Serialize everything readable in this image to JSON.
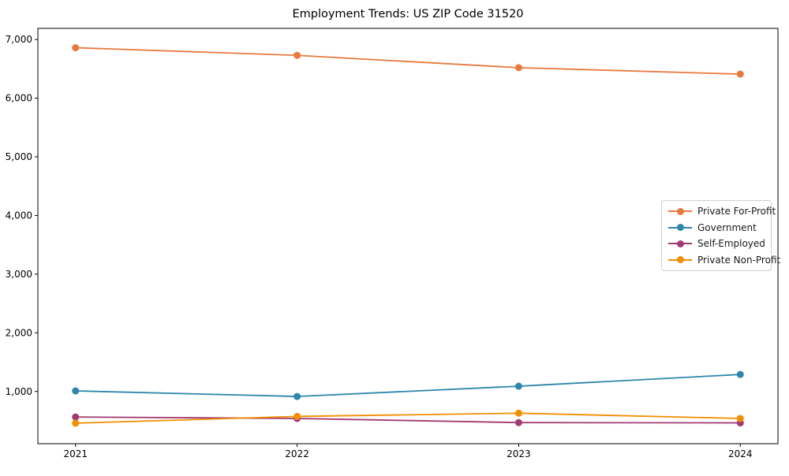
{
  "chart_data": {
    "type": "line",
    "title": "Employment Trends: US ZIP Code 31520",
    "x": [
      2021,
      2022,
      2023,
      2024
    ],
    "xtick_labels": [
      "2021",
      "2022",
      "2023",
      "2024"
    ],
    "series": [
      {
        "name": "Private For-Profit",
        "color": "#E8793D",
        "values": [
          6860,
          6730,
          6520,
          6410
        ]
      },
      {
        "name": "Government",
        "color": "#2E86AB",
        "values": [
          1010,
          915,
          1090,
          1290
        ]
      },
      {
        "name": "Self-Employed",
        "color": "#A23B72",
        "values": [
          565,
          540,
          470,
          465
        ]
      },
      {
        "name": "Private Non-Profit",
        "color": "#F18F01",
        "values": [
          460,
          575,
          630,
          540
        ]
      }
    ],
    "xlim": [
      2020.83,
      2024.17
    ],
    "ylim": [
      110,
      7190
    ],
    "yticks": [
      1000,
      2000,
      3000,
      4000,
      5000,
      6000,
      7000
    ],
    "ytick_labels": [
      "1,000",
      "2,000",
      "3,000",
      "4,000",
      "5,000",
      "6,000",
      "7,000"
    ],
    "grid": false,
    "marker": "circle",
    "legend_position": "right"
  }
}
